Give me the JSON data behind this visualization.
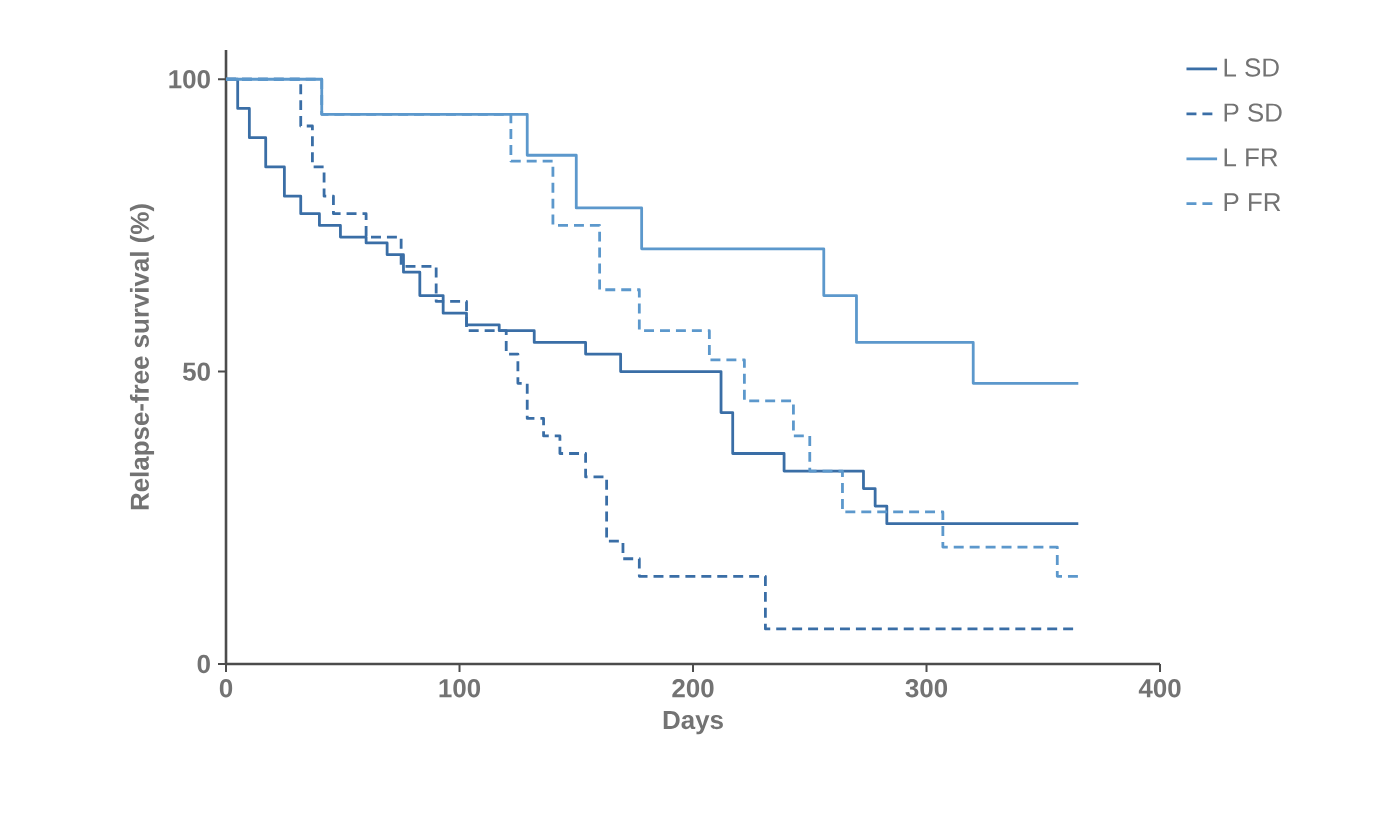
{
  "chart_data": {
    "type": "step",
    "xlabel": "Days",
    "ylabel": "Relapse-free survival (%)",
    "xlim": [
      0,
      400
    ],
    "ylim": [
      0,
      105
    ],
    "xticks": [
      0,
      100,
      200,
      300,
      400
    ],
    "yticks": [
      0,
      50,
      100
    ],
    "legend": "top right",
    "grid": false,
    "series": [
      {
        "name": "L SD",
        "color": "#3a6ea6",
        "line_style": "solid",
        "x": [
          0,
          5,
          10,
          17,
          25,
          32,
          40,
          49,
          60,
          69,
          76,
          83,
          93,
          103,
          117,
          132,
          154,
          169,
          212,
          217,
          239,
          273,
          278,
          283,
          365
        ],
        "values": [
          100,
          95,
          90,
          85,
          80,
          77,
          75,
          73,
          72,
          70,
          67,
          63,
          60,
          58,
          57,
          55,
          53,
          50,
          43,
          36,
          33,
          30,
          27,
          24,
          24
        ]
      },
      {
        "name": "P SD",
        "color": "#3a6ea6",
        "line_style": "dashed",
        "x": [
          0,
          32,
          37,
          42,
          46,
          60,
          75,
          90,
          103,
          120,
          125,
          129,
          136,
          143,
          154,
          163,
          170,
          177,
          231,
          365
        ],
        "values": [
          100,
          92,
          85,
          80,
          77,
          73,
          68,
          62,
          57,
          53,
          48,
          42,
          39,
          36,
          32,
          21,
          18,
          15,
          6,
          6
        ]
      },
      {
        "name": "L FR",
        "color": "#5c98cc",
        "line_style": "solid",
        "x": [
          0,
          41,
          129,
          150,
          178,
          256,
          270,
          320,
          365
        ],
        "values": [
          100,
          94,
          87,
          78,
          71,
          63,
          55,
          48,
          48
        ]
      },
      {
        "name": "P FR",
        "color": "#5c98cc",
        "line_style": "dashed",
        "x": [
          0,
          41,
          122,
          140,
          160,
          177,
          207,
          222,
          243,
          250,
          264,
          307,
          356,
          365
        ],
        "values": [
          100,
          94,
          86,
          75,
          64,
          57,
          52,
          45,
          39,
          33,
          26,
          20,
          15,
          15
        ]
      }
    ]
  }
}
